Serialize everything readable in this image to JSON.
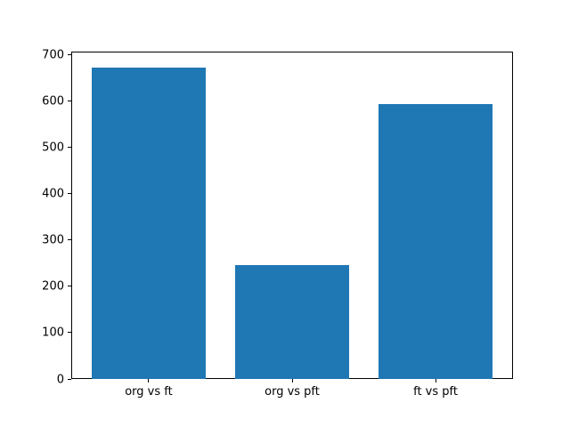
{
  "chart_data": {
    "type": "bar",
    "categories": [
      "org vs ft",
      "org vs pft",
      "ft vs pft"
    ],
    "values": [
      672,
      246,
      592
    ],
    "title": "",
    "xlabel": "",
    "ylabel": "",
    "ylim": [
      0,
      706
    ],
    "yticks": [
      0,
      100,
      200,
      300,
      400,
      500,
      600,
      700
    ],
    "bar_color": "#1f77b4",
    "spine_color": "#000000",
    "text_color": "#000000",
    "background_color": "#ffffff",
    "grid": false,
    "legend": null
  }
}
